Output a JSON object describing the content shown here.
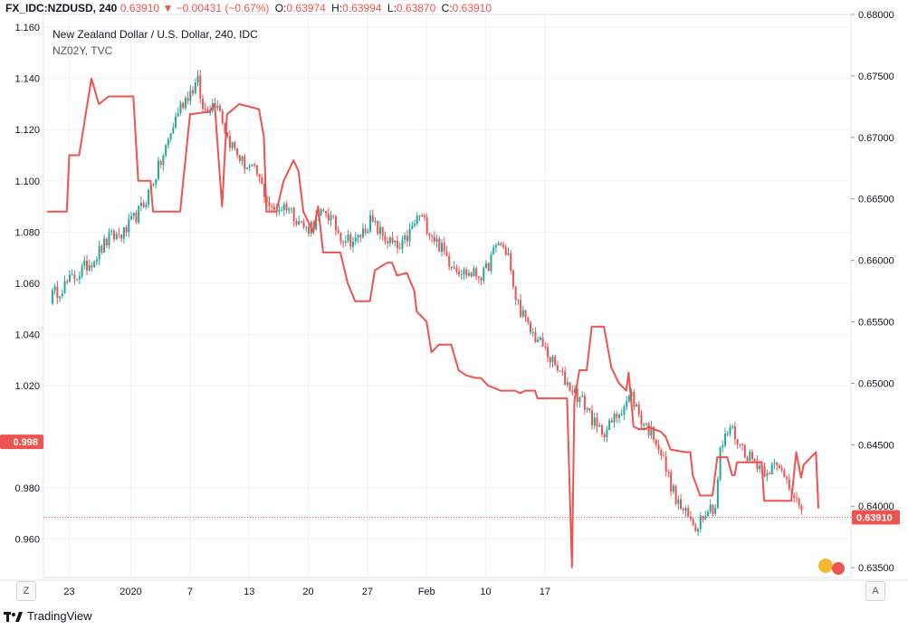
{
  "header": {
    "symbol": "FX_IDC:NZDUSD, 240",
    "last": "0.63910",
    "change": "▼ −0.00431 (−0.67%)",
    "open_label": "O:",
    "open": "0.63974",
    "high_label": "H:",
    "high": "0.63994",
    "low_label": "L:",
    "low": "0.63870",
    "close_label": "C:",
    "close": "0.63910"
  },
  "legend": {
    "title": "New Zealand Dollar / U.S. Dollar, 240, IDC",
    "overlay": "NZ02Y, TVC"
  },
  "buttons": {
    "left": "Z",
    "right": "A"
  },
  "brand": {
    "name": "TradingView"
  },
  "colors": {
    "candle_up": "#26a69a",
    "candle_down": "#ef5350",
    "overlay_line": "#ef5350",
    "grid": "#f0f3fa"
  },
  "chart_data": {
    "type": "line",
    "title": "New Zealand Dollar / U.S. Dollar, 240, IDC",
    "x_ticks": [
      "23",
      "2020",
      "7",
      "13",
      "20",
      "27",
      "Feb",
      "10",
      "17"
    ],
    "left_axis": {
      "ticks": [
        "1.160",
        "1.140",
        "1.120",
        "1.100",
        "1.080",
        "1.060",
        "1.040",
        "1.020",
        "0.998",
        "0.980",
        "0.960"
      ],
      "range": [
        0.945,
        1.165
      ],
      "badge": "0.998"
    },
    "right_axis": {
      "ticks": [
        "0.68000",
        "0.67500",
        "0.67000",
        "0.66500",
        "0.66000",
        "0.65500",
        "0.65000",
        "0.64500",
        "0.64000",
        "0.63500"
      ],
      "range": [
        0.6342,
        0.68
      ],
      "badge": "0.63910"
    },
    "grid": true,
    "series": [
      {
        "name": "FX_IDC:NZDUSD",
        "kind": "candlestick",
        "axis": "right",
        "color_up": "#26a69a",
        "color_down": "#ef5350",
        "anchors": [
          [
            0,
            0.657
          ],
          [
            6,
            0.658
          ],
          [
            12,
            0.659
          ],
          [
            18,
            0.6602
          ],
          [
            24,
            0.6618
          ],
          [
            30,
            0.6622
          ],
          [
            38,
            0.6645
          ],
          [
            46,
            0.6685
          ],
          [
            52,
            0.6722
          ],
          [
            56,
            0.6735
          ],
          [
            60,
            0.6745
          ],
          [
            62,
            0.6722
          ],
          [
            68,
            0.673
          ],
          [
            72,
            0.67
          ],
          [
            78,
            0.668
          ],
          [
            84,
            0.667
          ],
          [
            90,
            0.664
          ],
          [
            96,
            0.6645
          ],
          [
            104,
            0.6625
          ],
          [
            112,
            0.664
          ],
          [
            118,
            0.662
          ],
          [
            124,
            0.6615
          ],
          [
            130,
            0.6632
          ],
          [
            136,
            0.6618
          ],
          [
            142,
            0.6608
          ],
          [
            150,
            0.6637
          ],
          [
            156,
            0.6618
          ],
          [
            162,
            0.66
          ],
          [
            168,
            0.659
          ],
          [
            176,
            0.6588
          ],
          [
            182,
            0.6615
          ],
          [
            186,
            0.6605
          ],
          [
            188,
            0.6575
          ],
          [
            194,
            0.6545
          ],
          [
            200,
            0.653
          ],
          [
            206,
            0.651
          ],
          [
            212,
            0.6495
          ],
          [
            218,
            0.648
          ],
          [
            222,
            0.6462
          ],
          [
            226,
            0.6462
          ],
          [
            232,
            0.648
          ],
          [
            236,
            0.649
          ],
          [
            240,
            0.647
          ],
          [
            246,
            0.6455
          ],
          [
            250,
            0.643
          ],
          [
            254,
            0.6405
          ],
          [
            258,
            0.6393
          ],
          [
            262,
            0.6383
          ],
          [
            266,
            0.6398
          ],
          [
            270,
            0.64
          ],
          [
            272,
            0.6445
          ],
          [
            276,
            0.6465
          ],
          [
            280,
            0.645
          ],
          [
            284,
            0.644
          ],
          [
            290,
            0.643
          ],
          [
            294,
            0.6432
          ],
          [
            298,
            0.6427
          ],
          [
            302,
            0.641
          ],
          [
            305,
            0.6391
          ]
        ]
      },
      {
        "name": "NZ02Y, TVC",
        "kind": "line",
        "axis": "left",
        "color": "#ef5350",
        "points": [
          [
            0,
            1.088
          ],
          [
            8,
            1.088
          ],
          [
            9,
            1.11
          ],
          [
            13,
            1.11
          ],
          [
            18,
            1.14
          ],
          [
            21,
            1.13
          ],
          [
            25,
            1.133
          ],
          [
            35,
            1.133
          ],
          [
            37,
            1.1
          ],
          [
            42,
            1.1
          ],
          [
            43,
            1.088
          ],
          [
            54,
            1.088
          ],
          [
            58,
            1.126
          ],
          [
            66,
            1.127
          ],
          [
            68,
            1.13
          ],
          [
            71,
            1.09
          ],
          [
            73,
            1.126
          ],
          [
            78,
            1.13
          ],
          [
            86,
            1.128
          ],
          [
            88,
            1.117
          ],
          [
            89,
            1.088
          ],
          [
            93,
            1.088
          ],
          [
            96,
            1.1
          ],
          [
            100,
            1.108
          ],
          [
            102,
            1.104
          ],
          [
            104,
            1.088
          ],
          [
            108,
            1.08
          ],
          [
            110,
            1.09
          ],
          [
            112,
            1.072
          ],
          [
            119,
            1.072
          ],
          [
            122,
            1.06
          ],
          [
            125,
            1.053
          ],
          [
            131,
            1.053
          ],
          [
            133,
            1.065
          ],
          [
            138,
            1.068
          ],
          [
            140,
            1.068
          ],
          [
            142,
            1.063
          ],
          [
            146,
            1.064
          ],
          [
            149,
            1.057
          ],
          [
            150,
            1.049
          ],
          [
            154,
            1.045
          ],
          [
            156,
            1.033
          ],
          [
            159,
            1.036
          ],
          [
            164,
            1.036
          ],
          [
            167,
            1.026
          ],
          [
            170,
            1.024
          ],
          [
            174,
            1.023
          ],
          [
            176,
            1.023
          ],
          [
            179,
            1.02
          ],
          [
            184,
            1.018
          ],
          [
            190,
            1.018
          ],
          [
            192,
            1.017
          ],
          [
            194,
            1.018
          ],
          [
            198,
            1.018
          ],
          [
            199,
            1.015
          ],
          [
            211,
            1.015
          ],
          [
            213,
            0.949
          ],
          [
            214,
            1.014
          ],
          [
            216,
            1.026
          ],
          [
            219,
            1.026
          ],
          [
            221,
            1.043
          ],
          [
            226,
            1.043
          ],
          [
            229,
            1.027
          ],
          [
            232,
            1.021
          ],
          [
            235,
            1.018
          ],
          [
            236,
            1.025
          ],
          [
            238,
            1.004
          ],
          [
            240,
            1.003
          ],
          [
            243,
            1.003
          ],
          [
            244,
            1.004
          ],
          [
            246,
            1.003
          ],
          [
            249,
            1.002
          ],
          [
            251,
            1.0
          ],
          [
            253,
            0.995
          ],
          [
            259,
            0.994
          ],
          [
            261,
            0.994
          ],
          [
            262,
            0.985
          ],
          [
            265,
            0.977
          ],
          [
            270,
            0.977
          ],
          [
            272,
            0.992
          ],
          [
            276,
            0.992
          ],
          [
            278,
            0.985
          ],
          [
            279,
            0.985
          ],
          [
            280,
            0.99
          ],
          [
            283,
            0.99
          ],
          [
            286,
            0.99
          ],
          [
            290,
            0.99
          ],
          [
            291,
            0.975
          ],
          [
            298,
            0.975
          ],
          [
            302,
            0.975
          ],
          [
            304,
            0.994
          ],
          [
            306,
            0.984
          ],
          [
            307,
            0.989
          ],
          [
            312,
            0.994
          ],
          [
            313,
            0.972
          ]
        ]
      }
    ]
  }
}
